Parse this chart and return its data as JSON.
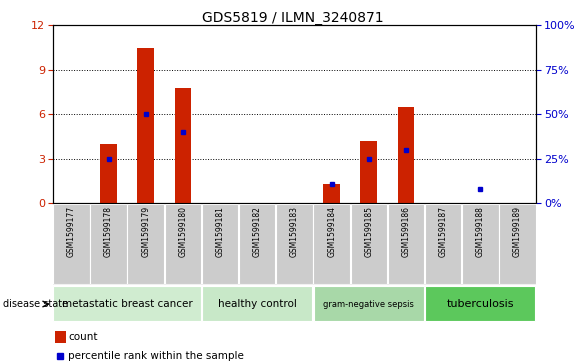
{
  "title": "GDS5819 / ILMN_3240871",
  "samples": [
    "GSM1599177",
    "GSM1599178",
    "GSM1599179",
    "GSM1599180",
    "GSM1599181",
    "GSM1599182",
    "GSM1599183",
    "GSM1599184",
    "GSM1599185",
    "GSM1599186",
    "GSM1599187",
    "GSM1599188",
    "GSM1599189"
  ],
  "counts": [
    0,
    4.0,
    10.5,
    7.8,
    0,
    0,
    0,
    1.3,
    4.2,
    6.5,
    0,
    0,
    0
  ],
  "percentiles": [
    0,
    25,
    50,
    40,
    0,
    0,
    0,
    11,
    25,
    30,
    0,
    8,
    0
  ],
  "groups": [
    {
      "label": "metastatic breast cancer",
      "start": 0,
      "end": 4,
      "color": "#d0ecd0"
    },
    {
      "label": "healthy control",
      "start": 4,
      "end": 7,
      "color": "#c8e8c8"
    },
    {
      "label": "gram-negative sepsis",
      "start": 7,
      "end": 10,
      "color": "#a8d8a8"
    },
    {
      "label": "tuberculosis",
      "start": 10,
      "end": 13,
      "color": "#5cc85c"
    }
  ],
  "ylim_left": [
    0,
    12
  ],
  "ylim_right": [
    0,
    100
  ],
  "yticks_left": [
    0,
    3,
    6,
    9,
    12
  ],
  "yticks_right": [
    0,
    25,
    50,
    75,
    100
  ],
  "bar_color": "#cc2200",
  "marker_color": "#0000cc",
  "left_axis_color": "#cc2200",
  "right_axis_color": "#0000cc",
  "label_bg": "#cccccc",
  "label_sep_color": "#aaaaaa"
}
